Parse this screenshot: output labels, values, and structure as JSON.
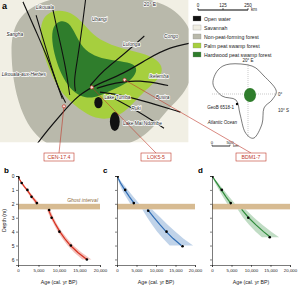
{
  "map": {
    "panel": "a",
    "lon_label": "20° E",
    "classes": [
      {
        "label": "Open water",
        "color": "#111111"
      },
      {
        "label": "Savannah",
        "color": "#f1efe4"
      },
      {
        "label": "Non-peat-forming forest",
        "color": "#b9b9ab"
      },
      {
        "label": "Palm peat swamp forest",
        "color": "#a6cf3e"
      },
      {
        "label": "Hardwood peat swamp forest",
        "color": "#2f7d2c"
      }
    ],
    "scale_bar": {
      "ticks": [
        0,
        125,
        250
      ],
      "unit": "km"
    },
    "rivers": [
      "Ubangi",
      "Sangha",
      "Likouala-aux-Herbes",
      "Likouala",
      "Lulonga",
      "Ikelemba",
      "Busira",
      "Ruki",
      "Congo"
    ],
    "lakes": [
      "Lake Tumba",
      "Lake Mai Ndombe"
    ],
    "inset": {
      "scale_bar": {
        "ticks": [
          0,
          500
        ],
        "unit": "km"
      },
      "lat_labels": [
        "0°",
        "10° S"
      ],
      "lon_label": "20° E",
      "core": "GeoB 6518-1",
      "ocean": "Atlantic Ocean"
    }
  },
  "chart_data": [
    {
      "type": "line",
      "panel": "b",
      "title": "CEN-17.4",
      "xlabel": "Age (cal. yr BP)",
      "ylabel": "Depth (m)",
      "xlim": [
        0,
        20000
      ],
      "xticks": [
        0,
        {
          "value": 5000,
          "label": "5,000"
        },
        {
          "value": 10000,
          "label": "10,000"
        },
        {
          "value": 15000,
          "label": "15,000"
        },
        {
          "value": 20000,
          "label": "20,000"
        }
      ],
      "ylim": [
        0,
        6.4
      ],
      "yticks": [
        0,
        1,
        2,
        3,
        4,
        5,
        6
      ],
      "annotation": "Ghost interval",
      "ghost_interval": [
        2.0,
        2.4
      ],
      "series": [
        {
          "type": "line",
          "color": "#d7301f",
          "x": [
            0,
            400,
            900,
            1500,
            2200,
            2800,
            3400,
            4100,
            4700,
            null,
            7400,
            7900,
            8300,
            9200,
            10200,
            11400,
            12800,
            14600,
            16800
          ],
          "values": [
            0,
            0.25,
            0.5,
            0.75,
            1,
            1.25,
            1.5,
            1.75,
            2.0,
            null,
            2.4,
            2.75,
            3,
            3.5,
            4,
            4.5,
            5,
            5.5,
            6
          ],
          "age_lower": [
            0,
            300,
            700,
            1250,
            1900,
            2450,
            3000,
            3650,
            4200,
            null,
            7000,
            7500,
            7900,
            8800,
            9700,
            10800,
            12100,
            13700,
            15700
          ],
          "age_upper": [
            0,
            500,
            1100,
            1750,
            2500,
            3150,
            3800,
            4550,
            5200,
            null,
            7800,
            8300,
            8700,
            9600,
            10700,
            12000,
            13500,
            15500,
            17900
          ]
        },
        {
          "type": "scatter",
          "color": "#000000",
          "marker": "circle",
          "x": [
            100,
            900,
            2300,
            3300,
            4600,
            7600,
            8200,
            10100,
            12900,
            16800
          ],
          "values": [
            0.1,
            0.5,
            1.0,
            1.5,
            1.95,
            2.45,
            3.0,
            4.0,
            5.0,
            6.0
          ]
        }
      ]
    },
    {
      "type": "line",
      "panel": "c",
      "title": "LOK5-5",
      "xlabel": "Age (cal. yr BP)",
      "tick_labels": "x",
      "xlim": [
        0,
        20000
      ],
      "xticks": [
        0,
        {
          "value": 5000,
          "label": "5,000"
        },
        {
          "value": 10000,
          "label": "10,000"
        },
        {
          "value": 15000,
          "label": "15,000"
        },
        {
          "value": 20000,
          "label": "20,000"
        }
      ],
      "ylim": [
        0,
        6.4
      ],
      "yticks": [
        0,
        1,
        2,
        3,
        4,
        5,
        6
      ],
      "ghost_interval": [
        2.0,
        2.4
      ],
      "series": [
        {
          "type": "line",
          "color": "#2f6db5",
          "x": [
            0,
            900,
            2000,
            3200,
            4500,
            null,
            7800,
            9500,
            11000,
            12600,
            14400,
            16500
          ],
          "values": [
            0,
            0.5,
            1,
            1.5,
            2.0,
            null,
            2.4,
            3,
            3.5,
            4,
            4.5,
            5
          ],
          "age_lower": [
            0,
            500,
            1300,
            2300,
            3400,
            null,
            6500,
            7800,
            9000,
            10300,
            11800,
            13500
          ],
          "age_upper": [
            0,
            1400,
            2800,
            4200,
            5700,
            null,
            9000,
            11200,
            13000,
            15000,
            17000,
            19500
          ]
        },
        {
          "type": "scatter",
          "color": "#000000",
          "marker": "circle",
          "x": [
            150,
            2100,
            4300,
            8000,
            12700,
            16800
          ],
          "values": [
            0.05,
            1.0,
            1.95,
            2.5,
            4.0,
            5.05
          ]
        }
      ]
    },
    {
      "type": "line",
      "panel": "d",
      "title": "BDM1-7",
      "xlabel": "Age (cal. yr BP)",
      "tick_labels": "x",
      "xlim": [
        0,
        20000
      ],
      "xticks": [
        0,
        {
          "value": 5000,
          "label": "5,000"
        },
        {
          "value": 10000,
          "label": "10,000"
        },
        {
          "value": 15000,
          "label": "15,000"
        },
        {
          "value": 20000,
          "label": "20,000"
        }
      ],
      "ylim": [
        0,
        6.4
      ],
      "yticks": [
        0,
        1,
        2,
        3,
        4,
        5,
        6
      ],
      "ghost_interval": [
        2.0,
        2.4
      ],
      "series": [
        {
          "type": "line",
          "color": "#2e8b3a",
          "x": [
            0,
            1200,
            2400,
            3600,
            4900,
            null,
            7600,
            9400,
            11200,
            13200,
            15000
          ],
          "values": [
            0,
            0.5,
            1,
            1.5,
            2.0,
            null,
            2.4,
            3,
            3.5,
            4,
            4.4
          ],
          "age_lower": [
            0,
            800,
            1800,
            2800,
            3900,
            null,
            6600,
            8000,
            9500,
            11200,
            12800
          ],
          "age_upper": [
            0,
            1600,
            3000,
            4400,
            5900,
            null,
            8600,
            10800,
            12900,
            15200,
            17200
          ]
        },
        {
          "type": "scatter",
          "color": "#000000",
          "marker": "circle",
          "x": [
            100,
            2500,
            4800,
            9300,
            14800
          ],
          "values": [
            0.05,
            1.0,
            1.95,
            3.0,
            4.4
          ]
        }
      ]
    }
  ]
}
